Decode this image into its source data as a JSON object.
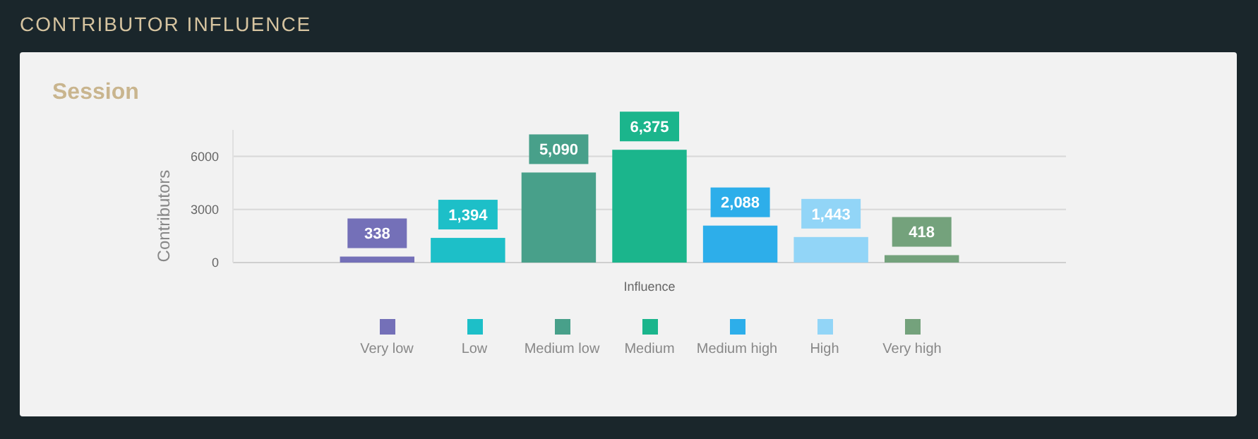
{
  "chart_data": {
    "type": "bar",
    "title": "CONTRIBUTOR INFLUENCE",
    "subtitle": "Session",
    "xlabel": "Influence",
    "ylabel": "Contributors",
    "categories": [
      null
    ],
    "ylim": [
      0,
      7500
    ],
    "yticks": [
      0,
      3000,
      6000
    ],
    "grid": "y",
    "legend": "bottom",
    "series": [
      {
        "name": "Very low",
        "color": "#7470b8",
        "values": [
          338
        ],
        "value_labels": [
          "338"
        ]
      },
      {
        "name": "Low",
        "color": "#1dbfc8",
        "values": [
          1394
        ],
        "value_labels": [
          "1,394"
        ]
      },
      {
        "name": "Medium low",
        "color": "#48a08a",
        "values": [
          5090
        ],
        "value_labels": [
          "5,090"
        ]
      },
      {
        "name": "Medium",
        "color": "#1bb58c",
        "values": [
          6375
        ],
        "value_labels": [
          "6,375"
        ]
      },
      {
        "name": "Medium high",
        "color": "#2daeea",
        "values": [
          2088
        ],
        "value_labels": [
          "2,088"
        ]
      },
      {
        "name": "High",
        "color": "#92d5f7",
        "values": [
          1443
        ],
        "value_labels": [
          "1,443"
        ]
      },
      {
        "name": "Very high",
        "color": "#74a27c",
        "values": [
          418
        ],
        "value_labels": [
          "418"
        ]
      }
    ]
  }
}
